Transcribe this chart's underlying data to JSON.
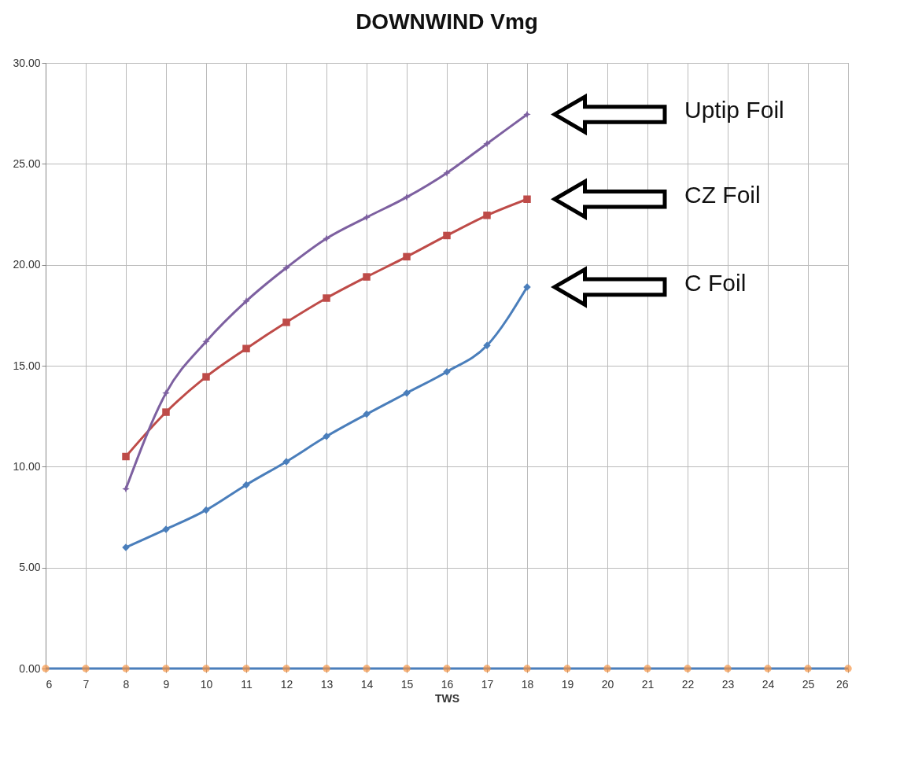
{
  "chart_data": {
    "type": "line",
    "title": "DOWNWIND Vmg",
    "xlabel": "TWS",
    "xlim": [
      6,
      26
    ],
    "xticks": [
      6,
      7,
      8,
      9,
      10,
      11,
      12,
      13,
      14,
      15,
      16,
      17,
      18,
      19,
      20,
      21,
      22,
      23,
      24,
      25,
      26
    ],
    "ylim": [
      0,
      30
    ],
    "yticks": [
      {
        "value": 0,
        "label": "0.00"
      },
      {
        "value": 5,
        "label": "5.00"
      },
      {
        "value": 10,
        "label": "10.00"
      },
      {
        "value": 15,
        "label": "15.00"
      },
      {
        "value": 20,
        "label": "20.00"
      },
      {
        "value": 25,
        "label": "25.00"
      },
      {
        "value": 30,
        "label": "30.00"
      }
    ],
    "grid": true,
    "legend": false,
    "series": [
      {
        "name": "C Foil",
        "color": "#4a7ebb",
        "marker": "diamond",
        "x": [
          8,
          9,
          10,
          11,
          12,
          13,
          14,
          15,
          16,
          17,
          18
        ],
        "values": [
          6.0,
          6.9,
          7.85,
          9.1,
          10.25,
          11.5,
          12.6,
          13.65,
          14.7,
          16.0,
          18.9
        ]
      },
      {
        "name": "CZ Foil",
        "color": "#be4b48",
        "marker": "square",
        "x": [
          8,
          9,
          10,
          11,
          12,
          13,
          14,
          15,
          16,
          17,
          18
        ],
        "values": [
          10.5,
          12.7,
          14.45,
          15.85,
          17.15,
          18.35,
          19.4,
          20.4,
          21.45,
          22.45,
          23.25
        ]
      },
      {
        "name": "Uptip Foil",
        "color": "#7d60a0",
        "marker": "star",
        "x": [
          8,
          9,
          10,
          11,
          12,
          13,
          14,
          15,
          16,
          17,
          18
        ],
        "values": [
          8.9,
          13.65,
          16.2,
          18.2,
          19.85,
          21.3,
          22.35,
          23.35,
          24.55,
          26.0,
          27.45
        ]
      },
      {
        "color": "#4a7ebb",
        "marker": "none",
        "x": [
          6,
          7,
          8,
          9,
          10,
          11,
          12,
          13,
          14,
          15,
          16,
          17,
          18,
          19,
          20,
          21,
          22,
          23,
          24,
          25,
          26
        ],
        "values": [
          0,
          0,
          0,
          0,
          0,
          0,
          0,
          0,
          0,
          0,
          0,
          0,
          0,
          0,
          0,
          0,
          0,
          0,
          0,
          0,
          0
        ]
      },
      {
        "type": "scatter",
        "color": "#f79646",
        "marker": "circle",
        "x": [
          6,
          7,
          8,
          9,
          10,
          11,
          12,
          13,
          14,
          15,
          16,
          17,
          18,
          19,
          20,
          21,
          22,
          23,
          24,
          25,
          26
        ],
        "values": [
          0,
          0,
          0,
          0,
          0,
          0,
          0,
          0,
          0,
          0,
          0,
          0,
          0,
          0,
          0,
          0,
          0,
          0,
          0,
          0,
          0
        ]
      }
    ]
  }
}
